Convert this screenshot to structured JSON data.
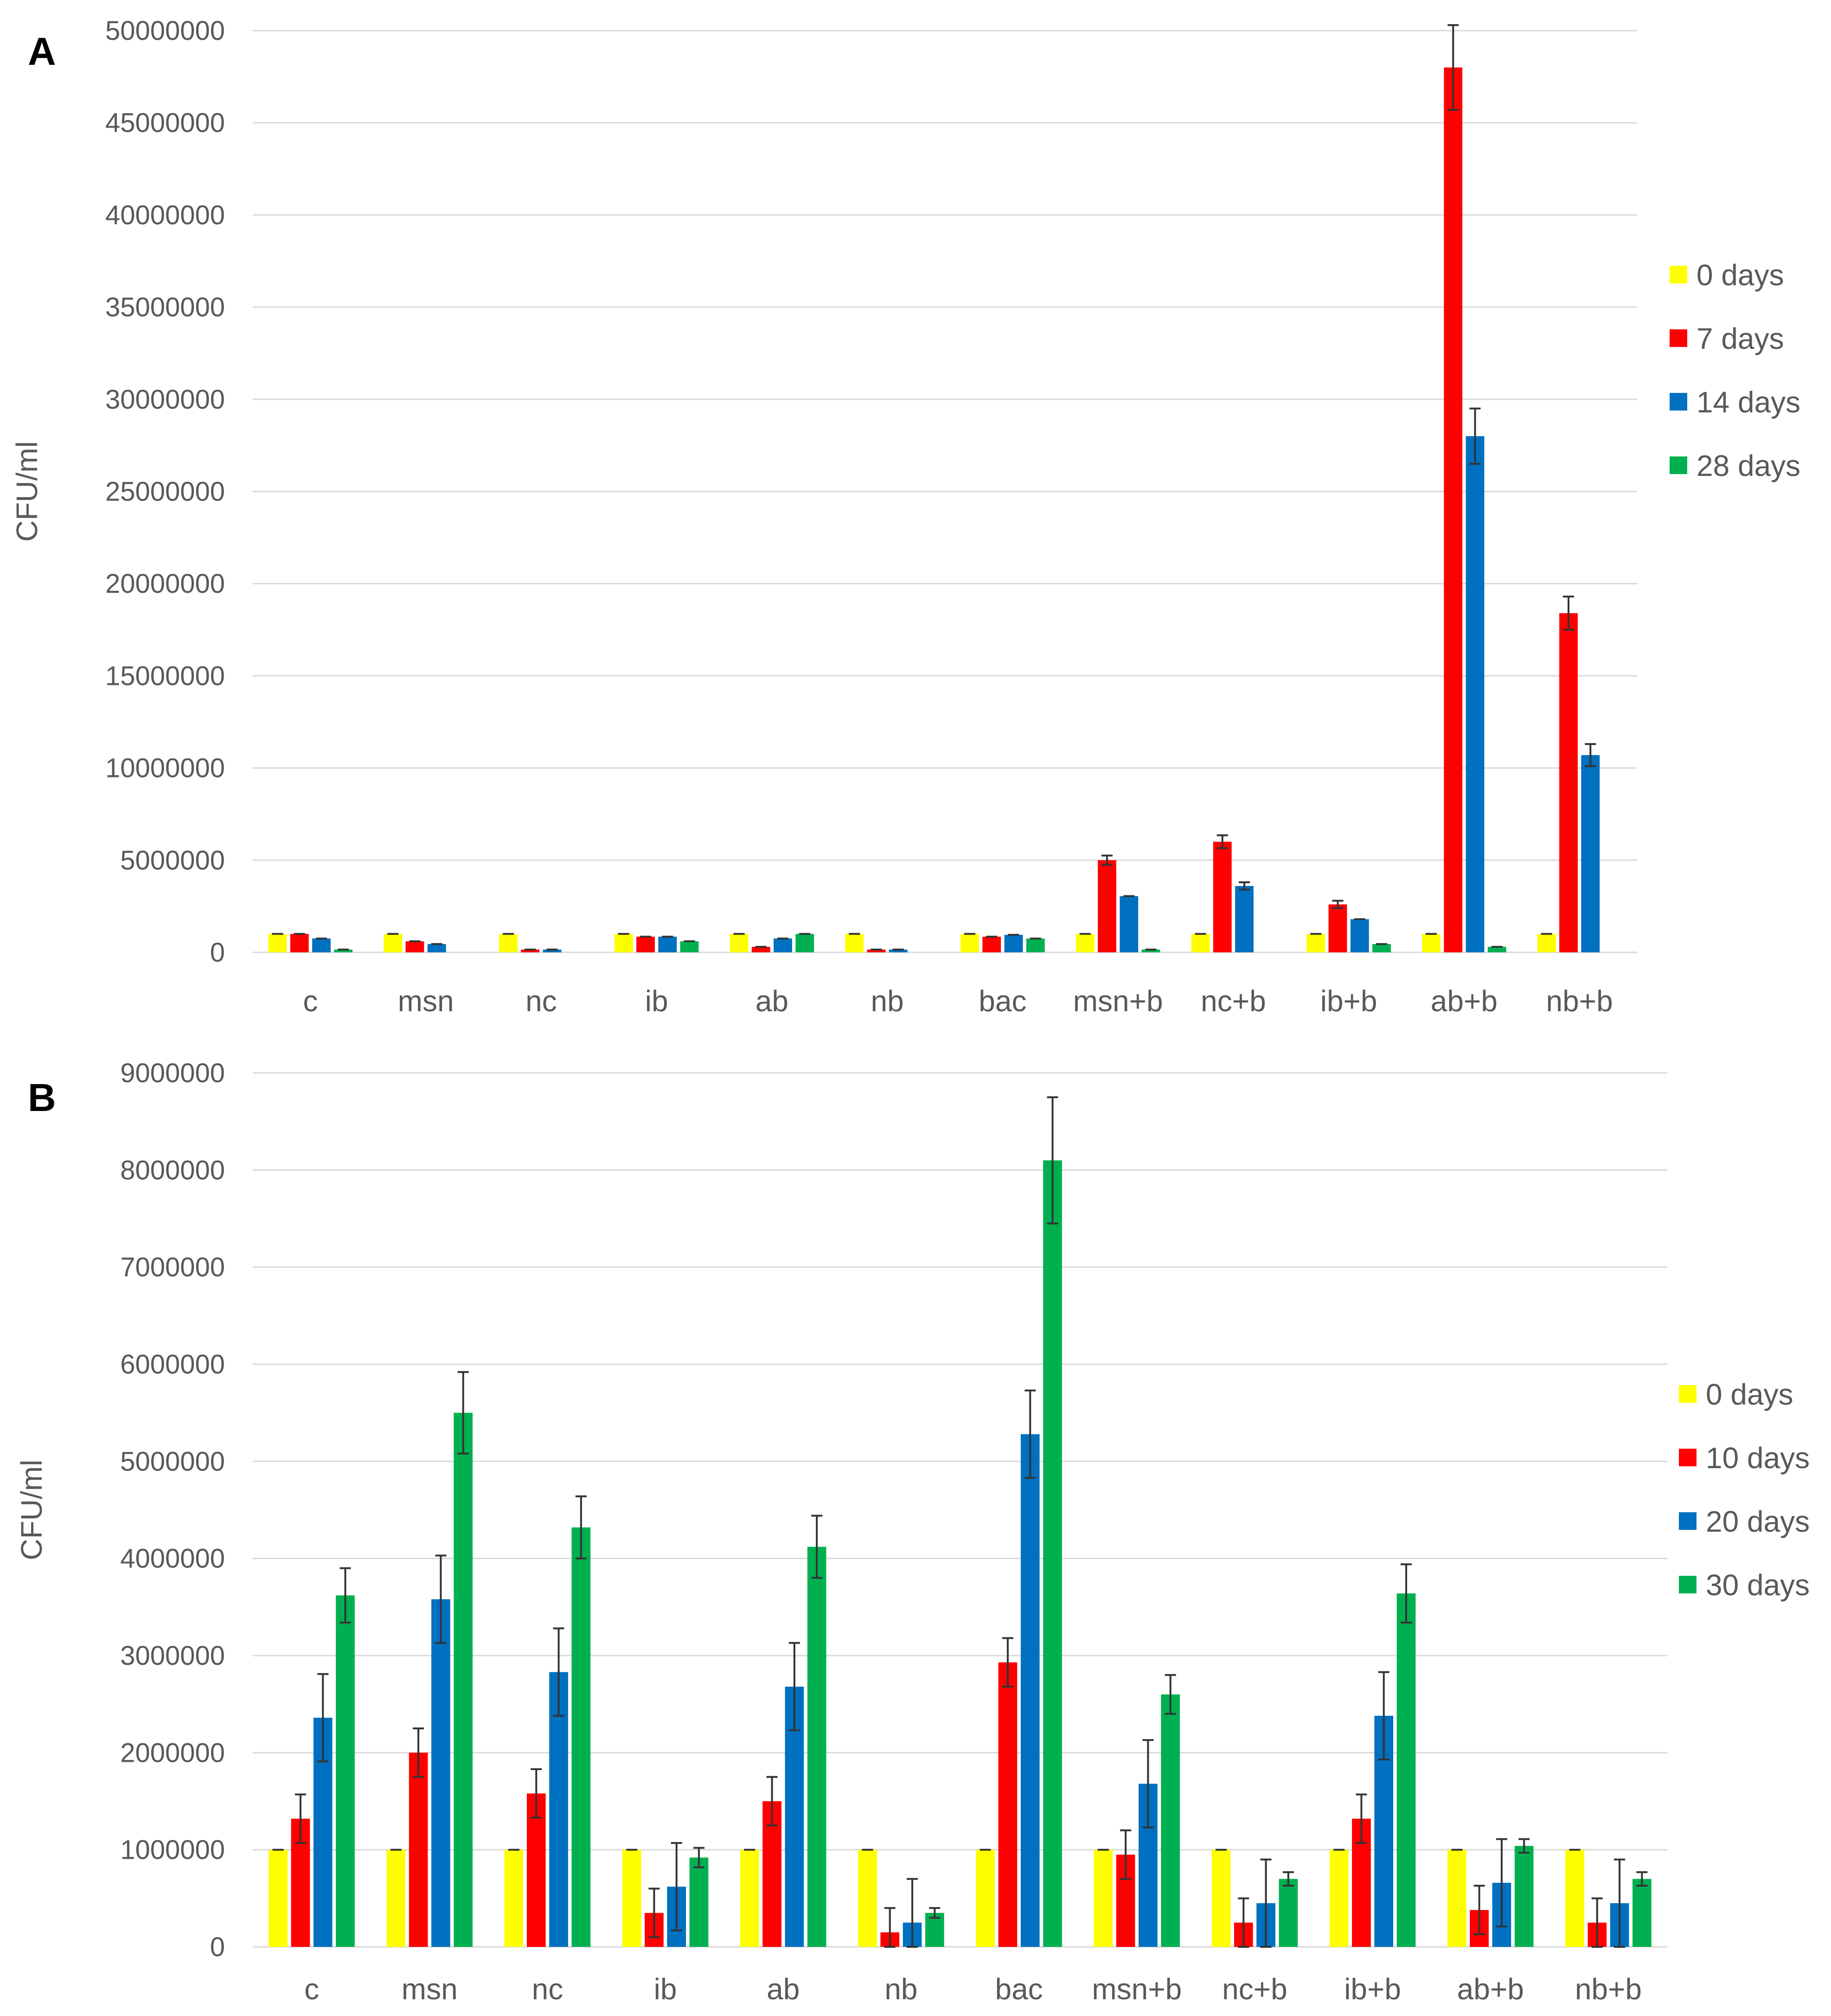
{
  "chart_data": [
    {
      "panel": "A",
      "type": "bar",
      "ylabel": "CFU/ml",
      "xlabel": "",
      "ylim": [
        0,
        50000000
      ],
      "yticks": [
        0,
        5000000,
        10000000,
        15000000,
        20000000,
        25000000,
        30000000,
        35000000,
        40000000,
        45000000,
        50000000
      ],
      "categories": [
        "c",
        "msn",
        "nc",
        "ib",
        "ab",
        "nb",
        "bac",
        "msn+b",
        "nc+b",
        "ib+b",
        "ab+b",
        "nb+b"
      ],
      "grid": true,
      "legend_position": "right",
      "series": [
        {
          "name": "0 days",
          "color": "#ffff00",
          "values": [
            1000000,
            1000000,
            1000000,
            1000000,
            1000000,
            1000000,
            1000000,
            1000000,
            1000000,
            1000000,
            1000000,
            1000000
          ],
          "errors": [
            0,
            0,
            0,
            0,
            0,
            0,
            0,
            0,
            0,
            0,
            0,
            0
          ]
        },
        {
          "name": "7 days",
          "color": "#ff0000",
          "values": [
            1000000,
            600000,
            150000,
            850000,
            300000,
            150000,
            850000,
            5000000,
            6000000,
            2600000,
            48000000,
            18400000
          ],
          "errors": [
            0,
            0,
            0,
            0,
            0,
            0,
            0,
            250000,
            350000,
            200000,
            2300000,
            900000
          ]
        },
        {
          "name": "14 days",
          "color": "#0070c0",
          "values": [
            750000,
            450000,
            150000,
            850000,
            750000,
            150000,
            950000,
            3050000,
            3600000,
            1800000,
            28000000,
            10700000
          ],
          "errors": [
            0,
            0,
            0,
            0,
            0,
            0,
            0,
            0,
            200000,
            0,
            1500000,
            600000
          ]
        },
        {
          "name": "28 days",
          "color": "#00b050",
          "values": [
            150000,
            0,
            0,
            600000,
            1000000,
            0,
            750000,
            150000,
            0,
            450000,
            300000,
            0
          ],
          "errors": [
            0,
            0,
            0,
            0,
            0,
            0,
            0,
            0,
            0,
            0,
            0,
            0
          ]
        }
      ]
    },
    {
      "panel": "B",
      "type": "bar",
      "ylabel": "CFU/ml",
      "xlabel": "",
      "ylim": [
        0,
        9000000
      ],
      "yticks": [
        0,
        1000000,
        2000000,
        3000000,
        4000000,
        5000000,
        6000000,
        7000000,
        8000000,
        9000000
      ],
      "categories": [
        "c",
        "msn",
        "nc",
        "ib",
        "ab",
        "nb",
        "bac",
        "msn+b",
        "nc+b",
        "ib+b",
        "ab+b",
        "nb+b"
      ],
      "grid": true,
      "legend_position": "right",
      "series": [
        {
          "name": "0 days",
          "color": "#ffff00",
          "values": [
            1000000,
            1000000,
            1000000,
            1000000,
            1000000,
            1000000,
            1000000,
            1000000,
            1000000,
            1000000,
            1000000,
            1000000
          ],
          "errors": [
            0,
            0,
            0,
            0,
            0,
            0,
            0,
            0,
            0,
            0,
            0,
            0
          ]
        },
        {
          "name": "10 days",
          "color": "#ff0000",
          "values": [
            1320000,
            2000000,
            1580000,
            350000,
            1500000,
            150000,
            2930000,
            950000,
            250000,
            1320000,
            380000,
            250000
          ],
          "errors": [
            250000,
            250000,
            250000,
            250000,
            250000,
            250000,
            250000,
            250000,
            250000,
            250000,
            250000,
            250000
          ]
        },
        {
          "name": "20 days",
          "color": "#0070c0",
          "values": [
            2360000,
            3580000,
            2830000,
            620000,
            2680000,
            250000,
            5280000,
            1680000,
            450000,
            2380000,
            660000,
            450000
          ],
          "errors": [
            450000,
            450000,
            450000,
            450000,
            450000,
            450000,
            450000,
            450000,
            450000,
            450000,
            450000,
            450000
          ]
        },
        {
          "name": "30 days",
          "color": "#00b050",
          "values": [
            3620000,
            5500000,
            4320000,
            920000,
            4120000,
            350000,
            8100000,
            2600000,
            700000,
            3640000,
            1040000,
            700000
          ],
          "errors": [
            280000,
            420000,
            320000,
            100000,
            320000,
            50000,
            650000,
            200000,
            70000,
            300000,
            70000,
            70000
          ]
        }
      ]
    }
  ]
}
